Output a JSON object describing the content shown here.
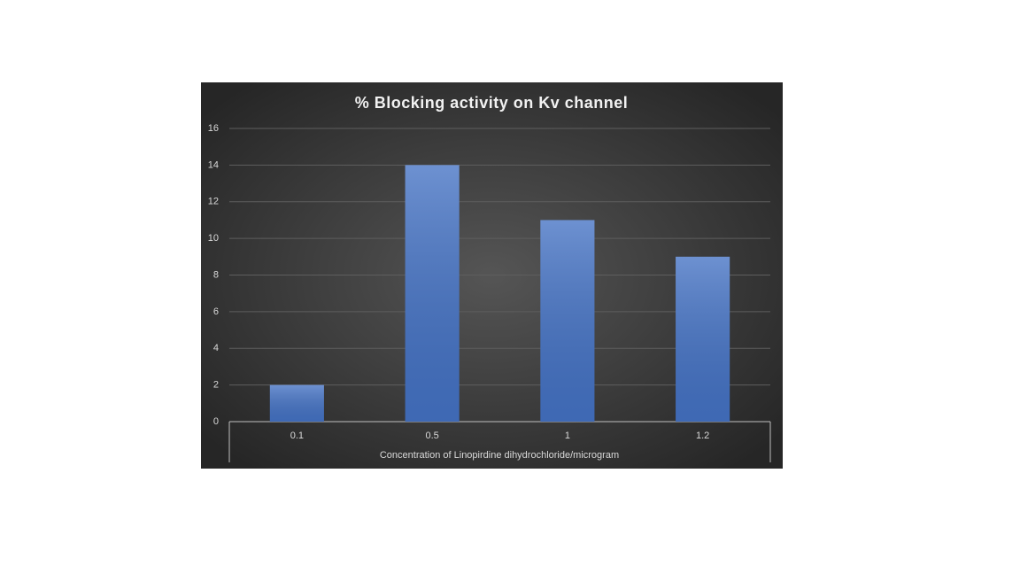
{
  "chart_data": {
    "type": "bar",
    "title": "% Blocking activity on Kv channel",
    "x_label": "Concentration of Linopirdine dihydrochloride/microgram",
    "categories": [
      "0.1",
      "0.5",
      "1",
      "1.2"
    ],
    "values": [
      2,
      14,
      11,
      9
    ],
    "color": "#4472c4",
    "ylim": [
      0,
      16
    ],
    "yticks": [
      0,
      2,
      4,
      6,
      8,
      10,
      12,
      14,
      16
    ],
    "grid": true
  }
}
